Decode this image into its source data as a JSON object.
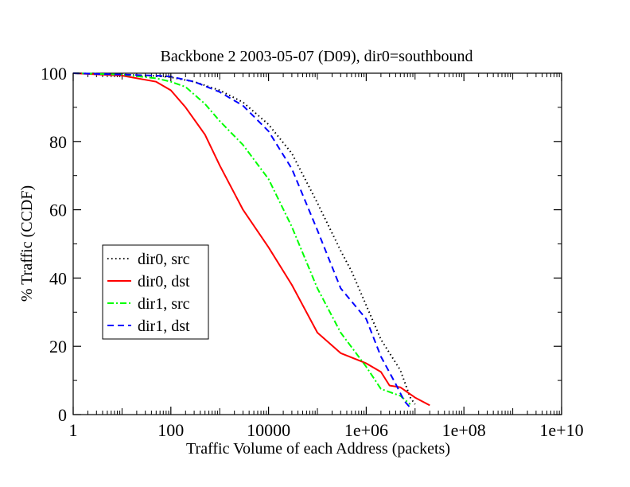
{
  "chart_data": {
    "type": "line",
    "title": "Backbone 2 2003-05-07 (D09), dir0=southbound",
    "xlabel": "Traffic Volume of each Address (packets)",
    "ylabel": "% Traffic (CCDF)",
    "x_scale": "log",
    "xlim": [
      1,
      10000000000
    ],
    "ylim": [
      0,
      100
    ],
    "x_ticks": [
      1,
      100,
      10000,
      1000000,
      100000000,
      10000000000
    ],
    "x_tick_labels": [
      "1",
      "100",
      "10000",
      "1e+06",
      "1e+08",
      "1e+10"
    ],
    "y_ticks": [
      0,
      20,
      40,
      60,
      80,
      100
    ],
    "y_tick_labels": [
      "0",
      "20",
      "40",
      "60",
      "80",
      "100"
    ],
    "grid": false,
    "legend_position": "lower-left",
    "series": [
      {
        "name": "dir0, src",
        "color": "#000000",
        "style": "dotted",
        "x": [
          1,
          10,
          50,
          100,
          300,
          1000,
          3000,
          10000,
          30000,
          100000,
          300000,
          500000,
          1000000,
          2000000,
          5000000,
          8000000,
          10000000
        ],
        "y": [
          100,
          99.6,
          99.2,
          98.8,
          97.5,
          95,
          91.5,
          85,
          76.5,
          62,
          48,
          42,
          32,
          22,
          13,
          5,
          3
        ]
      },
      {
        "name": "dir0, dst",
        "color": "#ff0000",
        "style": "solid",
        "x": [
          1,
          10,
          50,
          100,
          200,
          500,
          1000,
          3000,
          10000,
          30000,
          100000,
          300000,
          1000000,
          2000000,
          3000000,
          5000000,
          10000000,
          20000000
        ],
        "y": [
          100,
          99.3,
          97.5,
          95,
          90,
          82,
          73,
          60,
          49,
          38,
          24,
          18,
          15,
          12.5,
          8.5,
          8,
          5,
          2.7
        ]
      },
      {
        "name": "dir1, src",
        "color": "#00ff00",
        "style": "dash-dot",
        "x": [
          1,
          10,
          50,
          100,
          200,
          500,
          1000,
          3000,
          10000,
          30000,
          100000,
          300000,
          1000000,
          2000000,
          5000000,
          8000000
        ],
        "y": [
          100,
          99.6,
          98.5,
          97.5,
          96,
          91,
          86,
          79,
          69,
          55,
          37,
          24,
          14,
          7.5,
          5.5,
          3
        ]
      },
      {
        "name": "dir1, dst",
        "color": "#0000ff",
        "style": "dashed",
        "x": [
          1,
          10,
          50,
          100,
          300,
          1000,
          3000,
          10000,
          30000,
          100000,
          300000,
          1000000,
          2000000,
          4000000,
          6000000,
          8000000
        ],
        "y": [
          100,
          99.6,
          99.3,
          99,
          97.5,
          94.5,
          90.5,
          83,
          72,
          54,
          37,
          28,
          17,
          9,
          4,
          2
        ]
      }
    ]
  }
}
